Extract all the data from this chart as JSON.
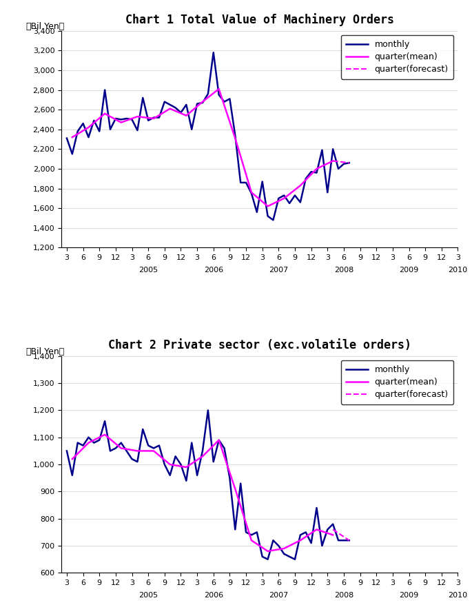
{
  "chart1_title": "Chart 1 Total Value of Machinery Orders",
  "chart2_title": "Chart 2 Private sector (exc.volatile orders)",
  "ylabel": "（Bil.Yen）",
  "chart1_ylim": [
    1200,
    3400
  ],
  "chart1_yticks": [
    1200,
    1400,
    1600,
    1800,
    2000,
    2200,
    2400,
    2600,
    2800,
    3000,
    3200,
    3400
  ],
  "chart2_ylim": [
    600,
    1400
  ],
  "chart2_yticks": [
    600,
    700,
    800,
    900,
    1000,
    1100,
    1200,
    1300,
    1400
  ],
  "monthly_color": "#00008B",
  "quarter_mean_color": "#FF00FF",
  "quarter_forecast_color": "#FF00FF",
  "monthly_linewidth": 1.8,
  "quarter_mean_linewidth": 1.8,
  "quarter_forecast_linewidth": 1.5,
  "legend_fontsize": 9,
  "title_fontsize": 12,
  "ylabel_fontsize": 9,
  "tick_fontsize": 8,
  "chart1_monthly": [
    2310,
    2150,
    2380,
    2460,
    2320,
    2490,
    2380,
    2800,
    2400,
    2510,
    2500,
    2510,
    2500,
    2390,
    2720,
    2490,
    2520,
    2520,
    2680,
    2650,
    2620,
    2570,
    2650,
    2400,
    2660,
    2670,
    2760,
    3180,
    2750,
    2680,
    2710,
    2340,
    1860,
    1860,
    1750,
    1560,
    1870,
    1520,
    1480,
    1700,
    1730,
    1650,
    1730,
    1660,
    1900,
    1970,
    1960,
    2190,
    1760,
    2200,
    2000,
    2050,
    2060
  ],
  "chart1_qm_indices": [
    1,
    4,
    7,
    10,
    13,
    16,
    19,
    22,
    25,
    28,
    31,
    34,
    37,
    40,
    43,
    46,
    49
  ],
  "chart1_qm_values": [
    2320,
    2420,
    2560,
    2470,
    2530,
    2510,
    2610,
    2540,
    2680,
    2810,
    2310,
    1760,
    1620,
    1700,
    1830,
    2000,
    2080
  ],
  "chart1_qfc_indices": [
    49,
    52
  ],
  "chart1_qfc_values": [
    2080,
    2060
  ],
  "chart2_monthly": [
    1050,
    960,
    1080,
    1070,
    1100,
    1080,
    1090,
    1160,
    1050,
    1060,
    1080,
    1050,
    1020,
    1010,
    1130,
    1070,
    1060,
    1070,
    1000,
    960,
    1030,
    1000,
    940,
    1080,
    960,
    1050,
    1200,
    1010,
    1090,
    1060,
    950,
    760,
    930,
    750,
    740,
    750,
    660,
    650,
    720,
    700,
    670,
    660,
    650,
    740,
    750,
    710,
    840,
    700,
    760,
    780,
    720,
    720,
    720
  ],
  "chart2_qm_indices": [
    1,
    4,
    7,
    10,
    13,
    16,
    19,
    22,
    25,
    28,
    31,
    34,
    37,
    40,
    43,
    46,
    49
  ],
  "chart2_qm_values": [
    1020,
    1080,
    1110,
    1060,
    1050,
    1050,
    1000,
    990,
    1030,
    1090,
    910,
    720,
    680,
    690,
    720,
    760,
    740
  ],
  "chart2_qfc_indices": [
    49,
    52
  ],
  "chart2_qfc_values": [
    760,
    720
  ]
}
